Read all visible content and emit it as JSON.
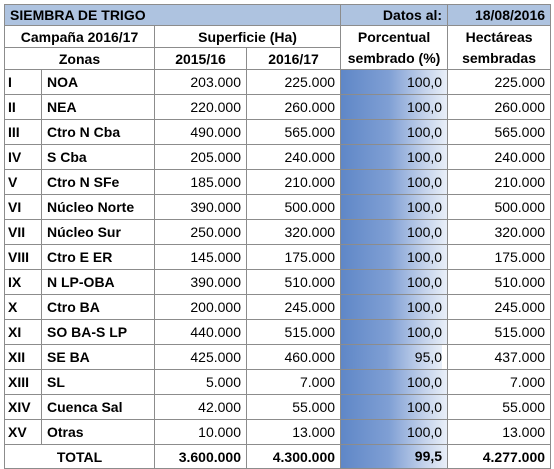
{
  "header": {
    "title": "SIEMBRA DE TRIGO",
    "date_label": "Datos al:",
    "date_value": "18/08/2016"
  },
  "columns": {
    "campaign": "Campaña 2016/17",
    "zonas": "Zonas",
    "superficie": "Superficie (Ha)",
    "year1": "2015/16",
    "year2": "2016/17",
    "porcentual_line1": "Porcentual",
    "porcentual_line2": "sembrado (%)",
    "hectareas_line1": "Hectáreas",
    "hectareas_line2": "sembradas"
  },
  "rows": [
    {
      "num": "I",
      "zona": "NOA",
      "sup_2015": "203.000",
      "sup_2016": "225.000",
      "pct": "100,0",
      "pct_value": 100.0,
      "ha": "225.000"
    },
    {
      "num": "II",
      "zona": "NEA",
      "sup_2015": "220.000",
      "sup_2016": "260.000",
      "pct": "100,0",
      "pct_value": 100.0,
      "ha": "260.000"
    },
    {
      "num": "III",
      "zona": "Ctro N Cba",
      "sup_2015": "490.000",
      "sup_2016": "565.000",
      "pct": "100,0",
      "pct_value": 100.0,
      "ha": "565.000"
    },
    {
      "num": "IV",
      "zona": "S Cba",
      "sup_2015": "205.000",
      "sup_2016": "240.000",
      "pct": "100,0",
      "pct_value": 100.0,
      "ha": "240.000"
    },
    {
      "num": "V",
      "zona": "Ctro N SFe",
      "sup_2015": "185.000",
      "sup_2016": "210.000",
      "pct": "100,0",
      "pct_value": 100.0,
      "ha": "210.000"
    },
    {
      "num": "VI",
      "zona": "Núcleo Norte",
      "sup_2015": "390.000",
      "sup_2016": "500.000",
      "pct": "100,0",
      "pct_value": 100.0,
      "ha": "500.000"
    },
    {
      "num": "VII",
      "zona": "Núcleo Sur",
      "sup_2015": "250.000",
      "sup_2016": "320.000",
      "pct": "100,0",
      "pct_value": 100.0,
      "ha": "320.000"
    },
    {
      "num": "VIII",
      "zona": "Ctro E ER",
      "sup_2015": "145.000",
      "sup_2016": "175.000",
      "pct": "100,0",
      "pct_value": 100.0,
      "ha": "175.000"
    },
    {
      "num": "IX",
      "zona": "N LP-OBA",
      "sup_2015": "390.000",
      "sup_2016": "510.000",
      "pct": "100,0",
      "pct_value": 100.0,
      "ha": "510.000"
    },
    {
      "num": "X",
      "zona": "Ctro BA",
      "sup_2015": "200.000",
      "sup_2016": "245.000",
      "pct": "100,0",
      "pct_value": 100.0,
      "ha": "245.000"
    },
    {
      "num": "XI",
      "zona": "SO BA-S LP",
      "sup_2015": "440.000",
      "sup_2016": "515.000",
      "pct": "100,0",
      "pct_value": 100.0,
      "ha": "515.000"
    },
    {
      "num": "XII",
      "zona": "SE BA",
      "sup_2015": "425.000",
      "sup_2016": "460.000",
      "pct": "95,0",
      "pct_value": 95.0,
      "ha": "437.000"
    },
    {
      "num": "XIII",
      "zona": "SL",
      "sup_2015": "5.000",
      "sup_2016": "7.000",
      "pct": "100,0",
      "pct_value": 100.0,
      "ha": "7.000"
    },
    {
      "num": "XIV",
      "zona": "Cuenca Sal",
      "sup_2015": "42.000",
      "sup_2016": "55.000",
      "pct": "100,0",
      "pct_value": 100.0,
      "ha": "55.000"
    },
    {
      "num": "XV",
      "zona": "Otras",
      "sup_2015": "10.000",
      "sup_2016": "13.000",
      "pct": "100,0",
      "pct_value": 100.0,
      "ha": "13.000"
    }
  ],
  "total": {
    "label": "TOTAL",
    "sup_2015": "3.600.000",
    "sup_2016": "4.300.000",
    "pct": "99,5",
    "pct_value": 99.5,
    "ha": "4.277.000"
  },
  "colors": {
    "title_bg": "#aec3e0",
    "bar_dark": "#5f87c7",
    "bar_light": "#e9eff8"
  }
}
